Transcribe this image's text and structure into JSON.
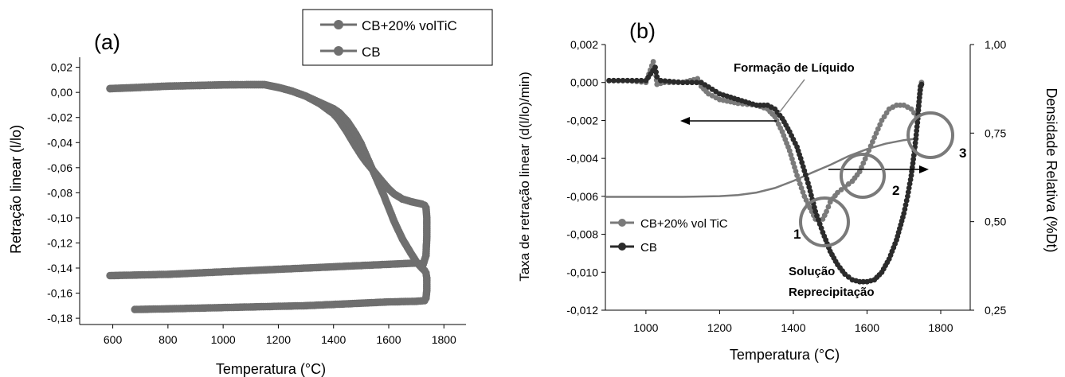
{
  "chart_data": [
    {
      "panel_label": "(a)",
      "type": "scatter",
      "xlabel": "Temperatura (°C)",
      "ylabel": "Retração linear (l/lo)",
      "xlim": [
        480,
        1880
      ],
      "ylim": [
        -0.185,
        0.028
      ],
      "xticks": [
        600,
        800,
        1000,
        1200,
        1400,
        1600,
        1800
      ],
      "xtick_labels": [
        "600",
        "800",
        "1000",
        "1200",
        "1400",
        "1600",
        "1800"
      ],
      "yticks": [
        0.02,
        0.0,
        -0.02,
        -0.04,
        -0.06,
        -0.08,
        -0.1,
        -0.12,
        -0.14,
        -0.16,
        -0.18
      ],
      "ytick_labels": [
        "0,02",
        "0,00",
        "-0,02",
        "-0,04",
        "-0,06",
        "-0,08",
        "-0,10",
        "-0,12",
        "-0,14",
        "-0,16",
        "-0,18"
      ],
      "legend": {
        "placement": "top-right"
      },
      "series": [
        {
          "name": "CB+20% volTiC",
          "color": "#6f6f6f",
          "x": [
            590,
            700,
            800,
            900,
            1000,
            1100,
            1150,
            1200,
            1250,
            1300,
            1350,
            1400,
            1420,
            1450,
            1480,
            1500,
            1520,
            1550,
            1580,
            1600,
            1620,
            1650,
            1680,
            1700,
            1720,
            1730,
            1735,
            1738,
            1738,
            1735,
            1725,
            1700,
            1600,
            1500,
            1400,
            1300,
            1200,
            1100,
            1000,
            900,
            800,
            700,
            590
          ],
          "y": [
            0.003,
            0.004,
            0.005,
            0.0055,
            0.006,
            0.0062,
            0.0062,
            0.004,
            0.001,
            -0.003,
            -0.009,
            -0.017,
            -0.022,
            -0.032,
            -0.043,
            -0.05,
            -0.056,
            -0.064,
            -0.072,
            -0.077,
            -0.081,
            -0.085,
            -0.087,
            -0.088,
            -0.089,
            -0.09,
            -0.092,
            -0.1,
            -0.115,
            -0.13,
            -0.137,
            -0.136,
            -0.137,
            -0.138,
            -0.139,
            -0.14,
            -0.141,
            -0.142,
            -0.143,
            -0.144,
            -0.145,
            -0.1455,
            -0.146
          ]
        },
        {
          "name": "CB",
          "color": "#6f6f6f",
          "x": [
            590,
            700,
            800,
            900,
            1000,
            1100,
            1150,
            1200,
            1250,
            1300,
            1350,
            1400,
            1420,
            1450,
            1480,
            1500,
            1520,
            1550,
            1580,
            1600,
            1620,
            1650,
            1680,
            1700,
            1720,
            1730,
            1735,
            1738,
            1738,
            1735,
            1730,
            1700,
            1600,
            1500,
            1400,
            1300,
            1200,
            1100,
            1000,
            900,
            800,
            680
          ],
          "y": [
            0.003,
            0.004,
            0.005,
            0.0055,
            0.006,
            0.0062,
            0.0062,
            0.004,
            0.001,
            -0.003,
            -0.008,
            -0.013,
            -0.016,
            -0.023,
            -0.033,
            -0.041,
            -0.051,
            -0.066,
            -0.081,
            -0.092,
            -0.103,
            -0.117,
            -0.128,
            -0.135,
            -0.14,
            -0.142,
            -0.144,
            -0.148,
            -0.158,
            -0.164,
            -0.166,
            -0.1665,
            -0.167,
            -0.168,
            -0.169,
            -0.17,
            -0.1705,
            -0.171,
            -0.1715,
            -0.172,
            -0.1725,
            -0.173
          ]
        }
      ]
    },
    {
      "panel_label": "(b)",
      "type": "scatter",
      "xlabel": "Temperatura (°C)",
      "ylabel": "Taxa de retração linear (d(l/lo)/min)",
      "ylabel_right": "Densidade Relativa (%Dt)",
      "xlim": [
        890,
        1880
      ],
      "ylim": [
        -0.012,
        0.002
      ],
      "ylim_right": [
        0.25,
        1.0
      ],
      "xticks": [
        1000,
        1200,
        1400,
        1600,
        1800
      ],
      "xtick_labels": [
        "1000",
        "1200",
        "1400",
        "1600",
        "1800"
      ],
      "yticks": [
        0.002,
        0.0,
        -0.002,
        -0.004,
        -0.006,
        -0.008,
        -0.01,
        -0.012
      ],
      "ytick_labels": [
        "0,002",
        "0,000",
        "-0,002",
        "-0,004",
        "-0,006",
        "-0,008",
        "-0,010",
        "-0,012"
      ],
      "yticks_right": [
        1.0,
        0.75,
        0.5,
        0.25
      ],
      "ytick_labels_right": [
        "1,00",
        "0,75",
        "0,50",
        "0,25"
      ],
      "legend": {
        "placement": "lower-center"
      },
      "series": [
        {
          "name": "CB+20% vol TiC",
          "color": "#7a7a7a",
          "x": [
            900,
            950,
            1000,
            1020,
            1025,
            1030,
            1050,
            1100,
            1140,
            1150,
            1170,
            1200,
            1250,
            1300,
            1330,
            1350,
            1370,
            1390,
            1410,
            1430,
            1450,
            1460,
            1470,
            1480,
            1490,
            1500,
            1520,
            1540,
            1560,
            1580,
            1600,
            1620,
            1640,
            1660,
            1680,
            1700,
            1720,
            1735,
            1740,
            1745,
            1748
          ],
          "y": [
            0.0001,
            0.0001,
            0.0,
            0.0011,
            0.0008,
            -0.0001,
            0.0,
            0.0,
            0.0002,
            -0.0002,
            -0.0006,
            -0.0009,
            -0.0011,
            -0.0012,
            -0.0014,
            -0.0018,
            -0.0026,
            -0.0036,
            -0.0049,
            -0.006,
            -0.0068,
            -0.0072,
            -0.0073,
            -0.0072,
            -0.0068,
            -0.0063,
            -0.0058,
            -0.0055,
            -0.0052,
            -0.0047,
            -0.0038,
            -0.0029,
            -0.002,
            -0.0014,
            -0.0012,
            -0.0012,
            -0.0014,
            -0.0018,
            -0.0012,
            -0.0004,
            0.0
          ]
        },
        {
          "name": "CB",
          "color": "#2b2b2b",
          "x": [
            900,
            950,
            1000,
            1025,
            1030,
            1040,
            1100,
            1150,
            1200,
            1250,
            1300,
            1330,
            1350,
            1370,
            1390,
            1410,
            1420,
            1440,
            1460,
            1480,
            1500,
            1520,
            1540,
            1560,
            1580,
            1600,
            1620,
            1640,
            1660,
            1680,
            1700,
            1710,
            1720,
            1730,
            1738,
            1742,
            1745,
            1748
          ],
          "y": [
            0.0001,
            0.0001,
            0.0001,
            0.0008,
            0.0003,
            0.0001,
            0.0,
            0.0,
            -0.0006,
            -0.0009,
            -0.0012,
            -0.0012,
            -0.0014,
            -0.0019,
            -0.0026,
            -0.0034,
            -0.004,
            -0.0053,
            -0.0068,
            -0.0079,
            -0.0089,
            -0.0096,
            -0.0101,
            -0.0104,
            -0.0105,
            -0.0105,
            -0.0104,
            -0.01,
            -0.0093,
            -0.0083,
            -0.0069,
            -0.006,
            -0.0049,
            -0.0034,
            -0.0019,
            -0.0008,
            -0.0002,
            -0.0001
          ]
        },
        {
          "name": "",
          "axis": "right",
          "color": "#7a7a7a",
          "x": [
            890,
            1000,
            1100,
            1200,
            1250,
            1300,
            1350,
            1400,
            1450,
            1500,
            1550,
            1600,
            1650,
            1700,
            1740
          ],
          "y": [
            0.57,
            0.57,
            0.57,
            0.572,
            0.575,
            0.582,
            0.595,
            0.615,
            0.638,
            0.66,
            0.685,
            0.705,
            0.72,
            0.73,
            0.735
          ]
        }
      ],
      "annotations": [
        {
          "text": "Formação de Líquido",
          "bold": true
        },
        {
          "text": "Solução",
          "bold": true
        },
        {
          "text": "Reprecipitação",
          "bold": true
        },
        {
          "text": "1",
          "bold": true
        },
        {
          "text": "2",
          "bold": true
        },
        {
          "text": "3",
          "bold": true
        }
      ]
    }
  ]
}
